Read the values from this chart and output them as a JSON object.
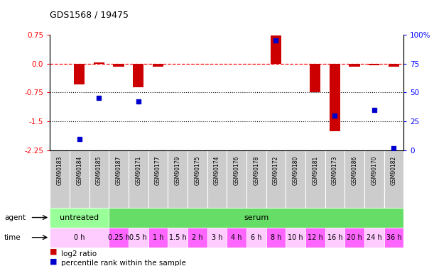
{
  "title": "GDS1568 / 19475",
  "samples": [
    "GSM90183",
    "GSM90184",
    "GSM90185",
    "GSM90187",
    "GSM90171",
    "GSM90177",
    "GSM90179",
    "GSM90175",
    "GSM90174",
    "GSM90176",
    "GSM90178",
    "GSM90172",
    "GSM90180",
    "GSM90181",
    "GSM90173",
    "GSM90186",
    "GSM90170",
    "GSM90182"
  ],
  "log2_ratio": [
    0.0,
    -0.55,
    0.02,
    -0.08,
    -0.62,
    -0.08,
    0.0,
    0.0,
    0.0,
    0.0,
    0.0,
    0.72,
    0.0,
    -0.75,
    -1.75,
    -0.08,
    -0.04,
    -0.08
  ],
  "percentile_rank": [
    null,
    10.0,
    45.0,
    null,
    42.0,
    null,
    null,
    null,
    null,
    null,
    null,
    95.0,
    null,
    null,
    30.0,
    null,
    35.0,
    2.0
  ],
  "bar_color": "#cc0000",
  "dot_color": "#0000cc",
  "ylim_left": [
    -2.25,
    0.75
  ],
  "ylim_right": [
    0,
    100
  ],
  "yticks_left": [
    0.75,
    0.0,
    -0.75,
    -1.5,
    -2.25
  ],
  "yticks_right": [
    100,
    75,
    50,
    25,
    0
  ],
  "dotted_lines": [
    -0.75,
    -1.5
  ],
  "untreated_count": 3,
  "serum_count": 15,
  "untreated_color": "#99ff99",
  "serum_color": "#66dd66",
  "time_labels": [
    "0 h",
    "0.25 h",
    "0.5 h",
    "1 h",
    "1.5 h",
    "2 h",
    "3 h",
    "4 h",
    "6 h",
    "8 h",
    "10 h",
    "12 h",
    "16 h",
    "20 h",
    "24 h",
    "36 h"
  ],
  "time_spans": [
    3,
    1,
    1,
    1,
    1,
    1,
    1,
    1,
    1,
    1,
    1,
    1,
    1,
    1,
    1,
    1
  ],
  "time_color_light": "#ffccff",
  "time_color_dark": "#ff66ff",
  "sample_box_color": "#cccccc",
  "legend_red_label": "log2 ratio",
  "legend_blue_label": "percentile rank within the sample"
}
